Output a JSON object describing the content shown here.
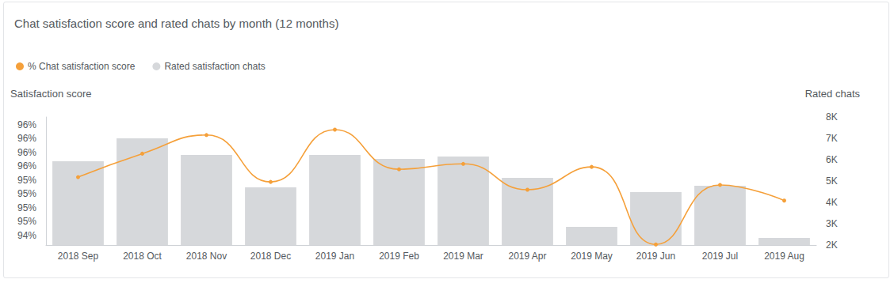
{
  "chart_data": {
    "type": "bar",
    "title": "Chat satisfaction score and rated chats by month (12 months)",
    "y_label": "Satisfaction score",
    "y2_label": "Rated chats",
    "categories": [
      "2018 Sep",
      "2018 Oct",
      "2018 Nov",
      "2018 Dec",
      "2019 Jan",
      "2019 Feb",
      "2019 Mar",
      "2019 Apr",
      "2019 May",
      "2019 Jun",
      "2019 Jul",
      "2019 Aug"
    ],
    "series": [
      {
        "name": "% Chat satisfaction score",
        "type": "line",
        "color": "#f5a03a",
        "marker": "circle",
        "line_style": "smooth",
        "values": [
          95.37,
          95.76,
          96.07,
          95.29,
          96.16,
          95.5,
          95.59,
          95.16,
          95.54,
          94.25,
          95.24,
          94.98
        ]
      },
      {
        "name": "Rated satisfaction chats",
        "type": "bar",
        "axis": "y2",
        "color": "#d6d8db",
        "values": [
          5930,
          7000,
          6220,
          4700,
          6220,
          6040,
          6150,
          5150,
          2850,
          4480,
          4780,
          2330
        ]
      }
    ],
    "ylim": [
      94.24,
      96.37
    ],
    "yticks": [
      {
        "value": 94.4,
        "label": "94%"
      },
      {
        "value": 94.63,
        "label": "95%"
      },
      {
        "value": 94.86,
        "label": "95%"
      },
      {
        "value": 95.09,
        "label": "95%"
      },
      {
        "value": 95.32,
        "label": "95%"
      },
      {
        "value": 95.55,
        "label": "96%"
      },
      {
        "value": 95.78,
        "label": "96%"
      },
      {
        "value": 96.01,
        "label": "96%"
      },
      {
        "value": 96.24,
        "label": "96%"
      }
    ],
    "y2lim": [
      2000,
      8000
    ],
    "y2ticks": [
      {
        "value": 2000,
        "label": "2K"
      },
      {
        "value": 3000,
        "label": "3K"
      },
      {
        "value": 4000,
        "label": "4K"
      },
      {
        "value": 5000,
        "label": "5K"
      },
      {
        "value": 6000,
        "label": "6K"
      },
      {
        "value": 7000,
        "label": "7K"
      },
      {
        "value": 8000,
        "label": "8K"
      }
    ],
    "grid": false,
    "legend": "top-left"
  }
}
